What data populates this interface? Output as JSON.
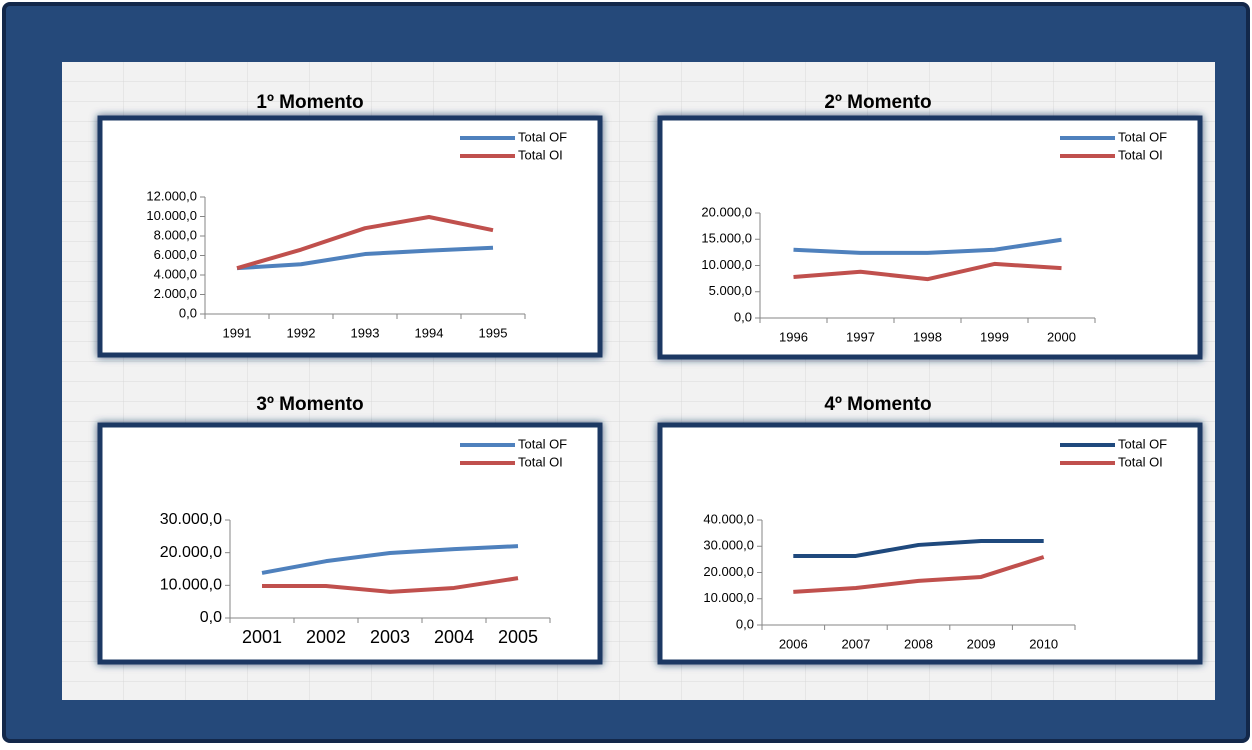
{
  "chart_data": [
    {
      "type": "line",
      "title": "1º Momento",
      "categories": [
        "1991",
        "1992",
        "1993",
        "1994",
        "1995"
      ],
      "series": [
        {
          "name": "Total OF",
          "color": "#4f81bd",
          "values": [
            4700,
            5100,
            6150,
            6500,
            6800
          ]
        },
        {
          "name": "Total OI",
          "color": "#c0504d",
          "values": [
            4700,
            6600,
            8800,
            9950,
            8600
          ]
        }
      ],
      "ylim": [
        0,
        12000
      ],
      "yticks": [
        {
          "value": 0,
          "label": "0,0"
        },
        {
          "value": 2000,
          "label": "2.000,0"
        },
        {
          "value": 4000,
          "label": "4.000,0"
        },
        {
          "value": 6000,
          "label": "6.000,0"
        },
        {
          "value": 8000,
          "label": "8.000,0"
        },
        {
          "value": 10000,
          "label": "10.000,0"
        },
        {
          "value": 12000,
          "label": "12.000,0"
        }
      ],
      "legend": "top-right"
    },
    {
      "type": "line",
      "title": "2º Momento",
      "categories": [
        "1996",
        "1997",
        "1998",
        "1999",
        "2000"
      ],
      "series": [
        {
          "name": "Total OF",
          "color": "#4f81bd",
          "values": [
            13000,
            12400,
            12400,
            13000,
            14900
          ]
        },
        {
          "name": "Total OI",
          "color": "#c0504d",
          "values": [
            7800,
            8800,
            7400,
            10300,
            9500
          ]
        }
      ],
      "ylim": [
        0,
        20000
      ],
      "yticks": [
        {
          "value": 0,
          "label": "0,0"
        },
        {
          "value": 5000,
          "label": "5.000,0"
        },
        {
          "value": 10000,
          "label": "10.000,0"
        },
        {
          "value": 15000,
          "label": "15.000,0"
        },
        {
          "value": 20000,
          "label": "20.000,0"
        }
      ],
      "legend": "top-right"
    },
    {
      "type": "line",
      "title": "3º Momento",
      "categories": [
        "2001",
        "2002",
        "2003",
        "2004",
        "2005"
      ],
      "series": [
        {
          "name": "Total OF",
          "color": "#4f81bd",
          "values": [
            13800,
            17400,
            19900,
            21100,
            22000
          ]
        },
        {
          "name": "Total OI",
          "color": "#c0504d",
          "values": [
            9800,
            9800,
            8000,
            9200,
            12200
          ]
        }
      ],
      "ylim": [
        0,
        30000
      ],
      "yticks": [
        {
          "value": 0,
          "label": "0,0"
        },
        {
          "value": 10000,
          "label": "10.000,0"
        },
        {
          "value": 20000,
          "label": "20.000,0"
        },
        {
          "value": 30000,
          "label": "30.000,0"
        }
      ],
      "legend": "top-right"
    },
    {
      "type": "line",
      "title": "4º Momento",
      "categories": [
        "2006",
        "2007",
        "2008",
        "2009",
        "2010"
      ],
      "series": [
        {
          "name": "Total OF",
          "color": "#1f497d",
          "values": [
            26300,
            26300,
            30500,
            32000,
            32000
          ]
        },
        {
          "name": "Total OI",
          "color": "#c0504d",
          "values": [
            12600,
            14100,
            16800,
            18300,
            25900
          ]
        }
      ],
      "ylim": [
        0,
        40000
      ],
      "yticks": [
        {
          "value": 0,
          "label": "0,0"
        },
        {
          "value": 10000,
          "label": "10.000,0"
        },
        {
          "value": 20000,
          "label": "20.000,0"
        },
        {
          "value": 30000,
          "label": "30.000,0"
        },
        {
          "value": 40000,
          "label": "40.000,0"
        }
      ],
      "legend": "top-right"
    }
  ]
}
